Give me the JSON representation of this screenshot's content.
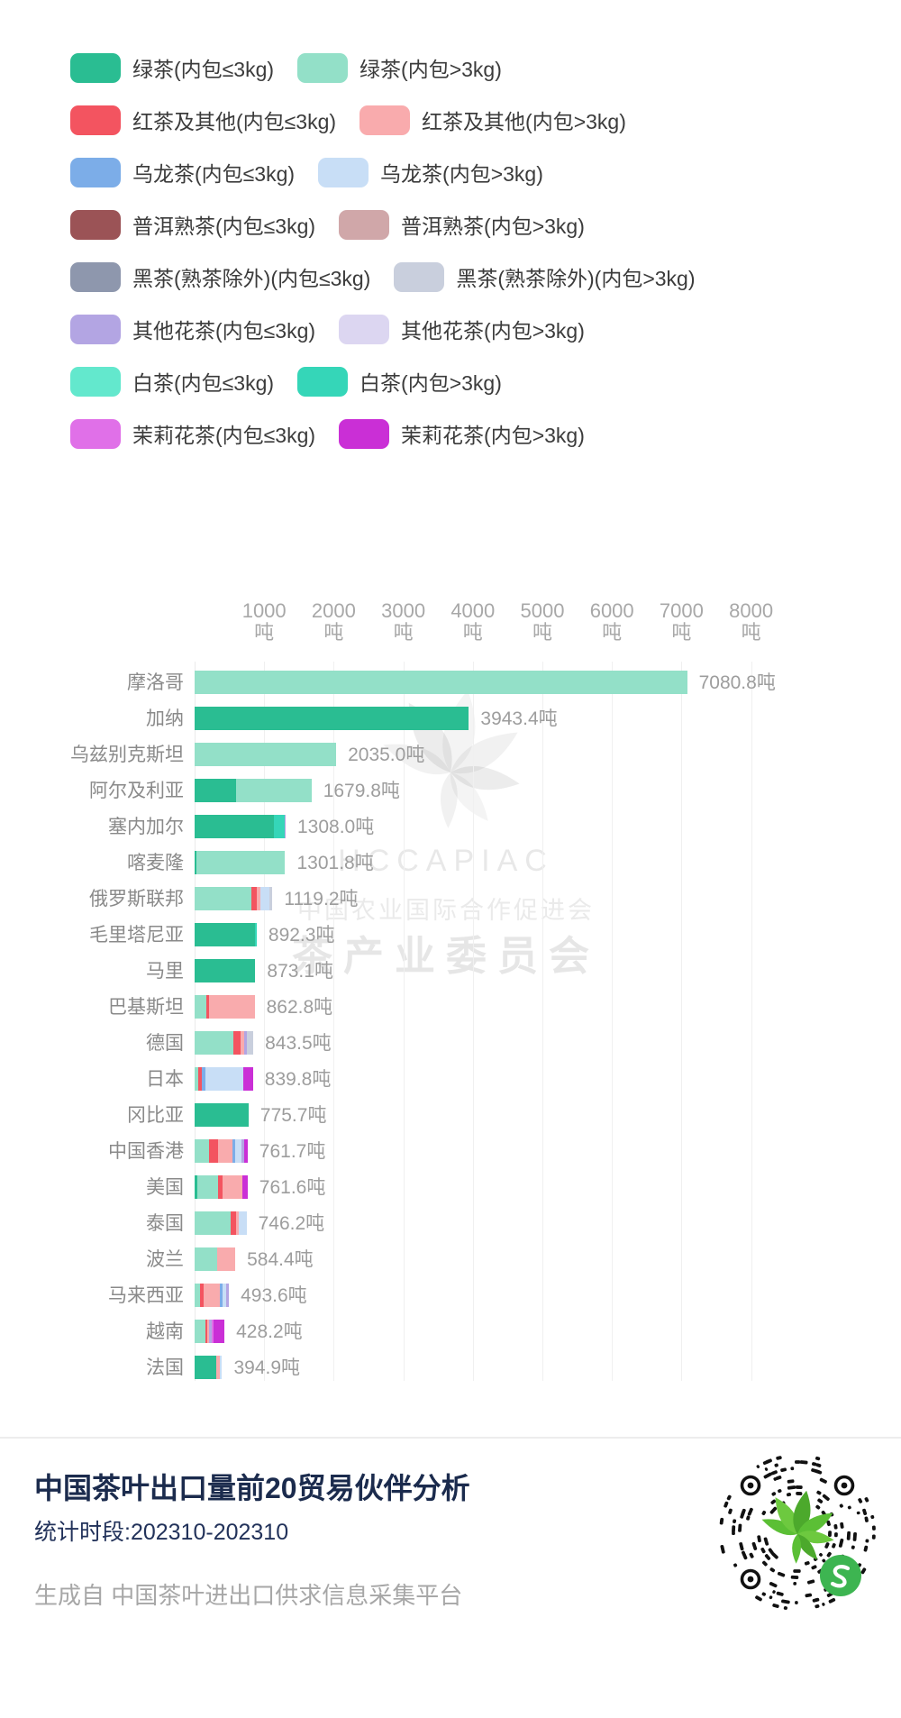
{
  "palette": {
    "green_le3": {
      "label": "绿茶(内包≤3kg)",
      "color": "#2abd92"
    },
    "green_gt3": {
      "label": "绿茶(内包>3kg)",
      "color": "#93e0c8"
    },
    "red_le3": {
      "label": "红茶及其他(内包≤3kg)",
      "color": "#f35460"
    },
    "red_gt3": {
      "label": "红茶及其他(内包>3kg)",
      "color": "#f9abad"
    },
    "oolong_le3": {
      "label": "乌龙茶(内包≤3kg)",
      "color": "#7cade8"
    },
    "oolong_gt3": {
      "label": "乌龙茶(内包>3kg)",
      "color": "#c8def6"
    },
    "puer_le3": {
      "label": "普洱熟茶(内包≤3kg)",
      "color": "#9b5356"
    },
    "puer_gt3": {
      "label": "普洱熟茶(内包>3kg)",
      "color": "#d0a7a9"
    },
    "black_le3": {
      "label": "黑茶(熟茶除外)(内包≤3kg)",
      "color": "#8e97ad"
    },
    "black_gt3": {
      "label": "黑茶(熟茶除外)(内包>3kg)",
      "color": "#c9cfdd"
    },
    "flower_le3": {
      "label": "其他花茶(内包≤3kg)",
      "color": "#b3a5e3"
    },
    "flower_gt3": {
      "label": "其他花茶(内包>3kg)",
      "color": "#dcd6f1"
    },
    "white_le3": {
      "label": "白茶(内包≤3kg)",
      "color": "#63e8cd"
    },
    "white_gt3": {
      "label": "白茶(内包>3kg)",
      "color": "#35d6b8"
    },
    "jasmine_le3": {
      "label": "茉莉花茶(内包≤3kg)",
      "color": "#e070e8"
    },
    "jasmine_gt3": {
      "label": "茉莉花茶(内包>3kg)",
      "color": "#ca2fd6"
    }
  },
  "legend_rows": [
    [
      "green_le3",
      "green_gt3"
    ],
    [
      "red_le3",
      "red_gt3"
    ],
    [
      "oolong_le3",
      "oolong_gt3"
    ],
    [
      "puer_le3",
      "puer_gt3"
    ],
    [
      "black_le3",
      "black_gt3"
    ],
    [
      "flower_le3",
      "flower_gt3"
    ],
    [
      "white_le3",
      "white_gt3"
    ],
    [
      "jasmine_le3",
      "jasmine_gt3"
    ]
  ],
  "chart_data": {
    "type": "bar",
    "orientation": "horizontal",
    "stacked": true,
    "grid": true,
    "unit": "吨",
    "xlim": [
      0,
      8000
    ],
    "x_ticks": {
      "values": [
        1000,
        2000,
        3000,
        4000,
        5000,
        6000,
        7000,
        8000
      ],
      "unit_line": "吨"
    },
    "bars": [
      {
        "country": "摩洛哥",
        "total": 7080.8,
        "value_label": "7080.8吨",
        "segments": [
          [
            "green_gt3",
            7080.8
          ]
        ]
      },
      {
        "country": "加纳",
        "total": 3943.4,
        "value_label": "3943.4吨",
        "segments": [
          [
            "green_le3",
            3943.4
          ]
        ]
      },
      {
        "country": "乌兹别克斯坦",
        "total": 2035.0,
        "value_label": "2035.0吨",
        "segments": [
          [
            "green_gt3",
            2035.0
          ]
        ]
      },
      {
        "country": "阿尔及利亚",
        "total": 1679.8,
        "value_label": "1679.8吨",
        "segments": [
          [
            "green_le3",
            600
          ],
          [
            "green_gt3",
            1079.8
          ]
        ]
      },
      {
        "country": "塞内加尔",
        "total": 1308.0,
        "value_label": "1308.0吨",
        "segments": [
          [
            "green_le3",
            1140
          ],
          [
            "white_gt3",
            150
          ],
          [
            "flower_le3",
            18
          ]
        ]
      },
      {
        "country": "喀麦隆",
        "total": 1301.8,
        "value_label": "1301.8吨",
        "segments": [
          [
            "green_le3",
            25
          ],
          [
            "green_gt3",
            1276.8
          ]
        ]
      },
      {
        "country": "俄罗斯联邦",
        "total": 1119.2,
        "value_label": "1119.2吨",
        "segments": [
          [
            "green_gt3",
            820
          ],
          [
            "red_le3",
            80
          ],
          [
            "red_gt3",
            40
          ],
          [
            "oolong_gt3",
            140
          ],
          [
            "black_gt3",
            39.2
          ]
        ]
      },
      {
        "country": "毛里塔尼亚",
        "total": 892.3,
        "value_label": "892.3吨",
        "segments": [
          [
            "green_le3",
            870
          ],
          [
            "white_gt3",
            22.3
          ]
        ]
      },
      {
        "country": "马里",
        "total": 873.1,
        "value_label": "873.1吨",
        "segments": [
          [
            "green_le3",
            873.1
          ]
        ]
      },
      {
        "country": "巴基斯坦",
        "total": 862.8,
        "value_label": "862.8吨",
        "segments": [
          [
            "green_gt3",
            170
          ],
          [
            "red_le3",
            35
          ],
          [
            "red_gt3",
            657.8
          ]
        ]
      },
      {
        "country": "德国",
        "total": 843.5,
        "value_label": "843.5吨",
        "segments": [
          [
            "green_gt3",
            555
          ],
          [
            "red_le3",
            100
          ],
          [
            "red_gt3",
            55
          ],
          [
            "flower_le3",
            35
          ],
          [
            "black_gt3",
            98.5
          ]
        ]
      },
      {
        "country": "日本",
        "total": 839.8,
        "value_label": "839.8吨",
        "segments": [
          [
            "green_gt3",
            55
          ],
          [
            "red_le3",
            50
          ],
          [
            "oolong_le3",
            55
          ],
          [
            "oolong_gt3",
            545
          ],
          [
            "jasmine_gt3",
            134.8
          ]
        ]
      },
      {
        "country": "冈比亚",
        "total": 775.7,
        "value_label": "775.7吨",
        "segments": [
          [
            "green_le3",
            775.7
          ]
        ]
      },
      {
        "country": "中国香港",
        "total": 761.7,
        "value_label": "761.7吨",
        "segments": [
          [
            "green_gt3",
            210
          ],
          [
            "red_le3",
            130
          ],
          [
            "red_gt3",
            200
          ],
          [
            "oolong_le3",
            40
          ],
          [
            "oolong_gt3",
            90
          ],
          [
            "flower_le3",
            40
          ],
          [
            "jasmine_gt3",
            51.7
          ]
        ]
      },
      {
        "country": "美国",
        "total": 761.6,
        "value_label": "761.6吨",
        "segments": [
          [
            "green_le3",
            40
          ],
          [
            "green_gt3",
            300
          ],
          [
            "red_le3",
            60
          ],
          [
            "red_gt3",
            290
          ],
          [
            "jasmine_gt3",
            71.6
          ]
        ]
      },
      {
        "country": "泰国",
        "total": 746.2,
        "value_label": "746.2吨",
        "segments": [
          [
            "green_gt3",
            520
          ],
          [
            "red_le3",
            70
          ],
          [
            "red_gt3",
            40
          ],
          [
            "oolong_gt3",
            116.2
          ]
        ]
      },
      {
        "country": "波兰",
        "total": 584.4,
        "value_label": "584.4吨",
        "segments": [
          [
            "green_gt3",
            330
          ],
          [
            "red_gt3",
            254.4
          ]
        ]
      },
      {
        "country": "马来西亚",
        "total": 493.6,
        "value_label": "493.6吨",
        "segments": [
          [
            "green_gt3",
            80
          ],
          [
            "red_le3",
            50
          ],
          [
            "red_gt3",
            235
          ],
          [
            "oolong_le3",
            35
          ],
          [
            "oolong_gt3",
            55
          ],
          [
            "flower_le3",
            38.6
          ]
        ]
      },
      {
        "country": "越南",
        "total": 428.2,
        "value_label": "428.2吨",
        "segments": [
          [
            "green_gt3",
            150
          ],
          [
            "red_le3",
            30
          ],
          [
            "red_gt3",
            30
          ],
          [
            "flower_le3",
            30
          ],
          [
            "jasmine_le3",
            30
          ],
          [
            "jasmine_gt3",
            158.2
          ]
        ]
      },
      {
        "country": "法国",
        "total": 394.9,
        "value_label": "394.9吨",
        "segments": [
          [
            "green_le3",
            305
          ],
          [
            "red_gt3",
            60
          ],
          [
            "oolong_gt3",
            29.9
          ]
        ]
      }
    ]
  },
  "watermark": {
    "line1": "HCCAPIAC",
    "line2": "中国农业国际合作促进会",
    "line3": "茶产业委员会"
  },
  "footer": {
    "title": "中国茶叶出口量前20贸易伙伴分析",
    "subtitle": "统计时段:202310-202310",
    "source": "生成自 中国茶叶进出口供求信息采集平台"
  },
  "qr_colors": {
    "dots": "#111111",
    "leaf": "#5bbf35",
    "badge": "#3db551"
  }
}
